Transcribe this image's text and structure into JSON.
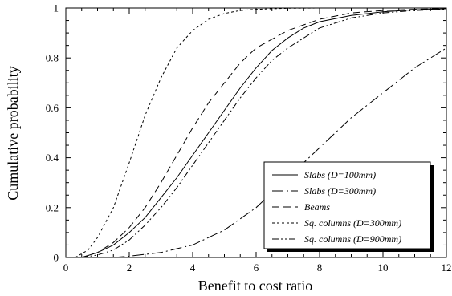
{
  "chart_data": {
    "type": "line",
    "xlabel": "Benefit to cost ratio",
    "ylabel": "Cumulative probability",
    "xlim": [
      0,
      12
    ],
    "ylim": [
      0,
      1
    ],
    "xticks": [
      0,
      2,
      4,
      6,
      8,
      10,
      12
    ],
    "yticks": [
      0,
      0.2,
      0.4,
      0.6,
      0.8,
      1
    ],
    "xtick_labels": [
      "0",
      "2",
      "4",
      "6",
      "8",
      "10",
      "12"
    ],
    "ytick_labels": [
      "0",
      "0.2",
      "0.4",
      "0.6",
      "0.8",
      "1"
    ],
    "grid": false,
    "legend_position": "bottom-right",
    "series": [
      {
        "name": "Slabs (D=100mm)",
        "dash": "solid",
        "x": [
          0.5,
          1,
          1.5,
          2,
          2.5,
          3,
          3.5,
          4,
          4.5,
          5,
          5.5,
          6,
          6.5,
          7,
          7.5,
          8,
          9,
          10,
          11,
          12
        ],
        "y": [
          0.0,
          0.02,
          0.05,
          0.1,
          0.16,
          0.24,
          0.32,
          0.41,
          0.5,
          0.59,
          0.68,
          0.76,
          0.83,
          0.88,
          0.92,
          0.945,
          0.97,
          0.985,
          0.993,
          0.997
        ]
      },
      {
        "name": "Slabs (D=300mm)",
        "dash": "long-dash-dot",
        "x": [
          1.5,
          2,
          3,
          4,
          5,
          6,
          7,
          8,
          9,
          10,
          11,
          12
        ],
        "y": [
          0.0,
          0.005,
          0.02,
          0.05,
          0.11,
          0.2,
          0.32,
          0.44,
          0.56,
          0.66,
          0.76,
          0.84
        ]
      },
      {
        "name": "Beams",
        "dash": "long-dash",
        "x": [
          0.5,
          1,
          1.5,
          2,
          2.5,
          3,
          3.5,
          4,
          4.5,
          5,
          5.5,
          6,
          7,
          8,
          9,
          10,
          11,
          12
        ],
        "y": [
          0.0,
          0.02,
          0.06,
          0.12,
          0.2,
          0.3,
          0.41,
          0.52,
          0.62,
          0.7,
          0.78,
          0.84,
          0.91,
          0.955,
          0.98,
          0.99,
          0.995,
          0.998
        ]
      },
      {
        "name": "Sq. columns (D=300mm)",
        "dash": "short-dash",
        "x": [
          0.3,
          0.7,
          1,
          1.5,
          2,
          2.5,
          3,
          3.5,
          4,
          4.5,
          5,
          5.5,
          6,
          7,
          8,
          10,
          12
        ],
        "y": [
          0.0,
          0.03,
          0.08,
          0.2,
          0.38,
          0.57,
          0.72,
          0.84,
          0.91,
          0.955,
          0.978,
          0.99,
          0.995,
          0.999,
          1.0,
          1.0,
          1.0
        ]
      },
      {
        "name": "Sq. columns (D=900mm)",
        "dash": "dash-dot-dot",
        "x": [
          0.5,
          1,
          1.5,
          2,
          2.5,
          3,
          3.5,
          4,
          4.5,
          5,
          5.5,
          6,
          6.5,
          7,
          7.5,
          8,
          9,
          10,
          11,
          12
        ],
        "y": [
          0.0,
          0.01,
          0.03,
          0.07,
          0.13,
          0.2,
          0.28,
          0.37,
          0.46,
          0.55,
          0.64,
          0.72,
          0.79,
          0.84,
          0.88,
          0.92,
          0.96,
          0.98,
          0.99,
          0.995
        ]
      }
    ]
  },
  "colors": {
    "line": "#000000",
    "background": "#ffffff"
  }
}
